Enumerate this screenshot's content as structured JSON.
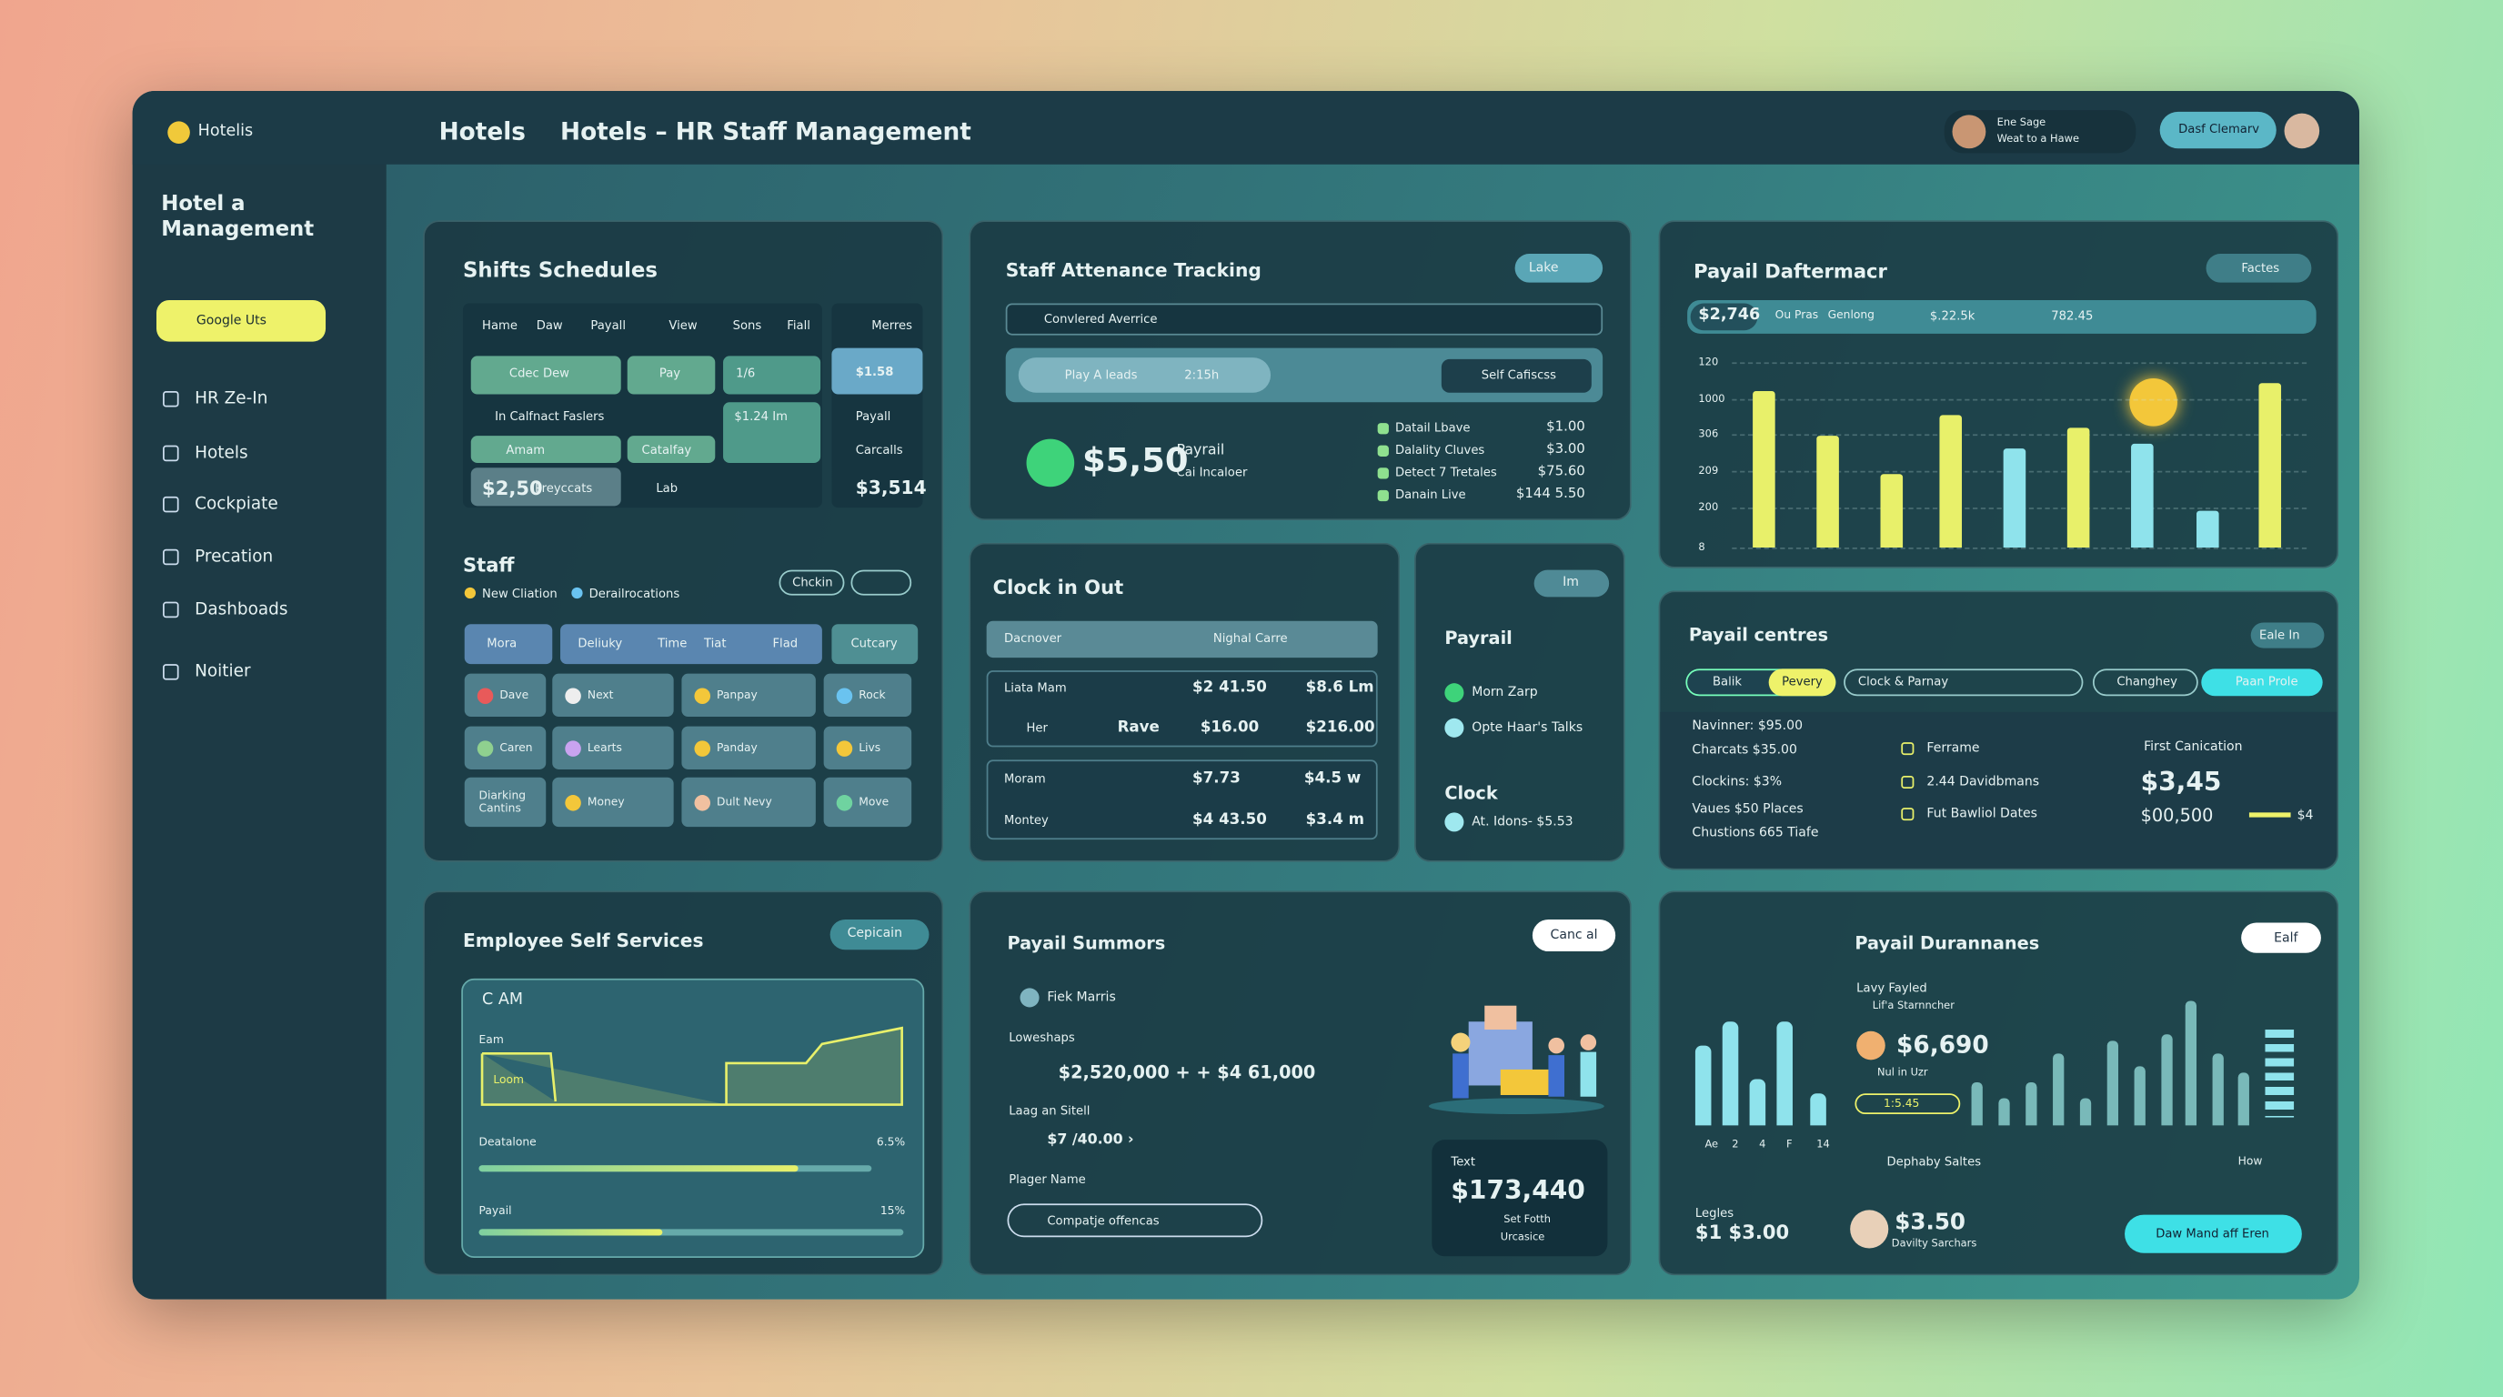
{
  "sidebar": {
    "brand": "Hotelis",
    "title_lines": [
      "Hotel a",
      "Management"
    ],
    "button": "Google Uts",
    "nav": [
      "HR Ze-In",
      "Hotels",
      "Cockpiate",
      "Precation",
      "Dashboads",
      "Noitier"
    ]
  },
  "header": {
    "crumb": "Hotels",
    "title": "Hotels – HR Staff Management",
    "user_name": "Ene Sage",
    "user_role": "Weat to a Hawe",
    "button": "Dasf Clemarv"
  },
  "shifts": {
    "title": "Shifts Schedules",
    "columns": [
      "Hame",
      "Daw",
      "Payall",
      "View",
      "Sons",
      "Fiall"
    ],
    "side_header": "Merres",
    "cells": [
      "Cdec Dew",
      "Pay",
      "1/6",
      "$1.58",
      "In Calfnact Faslers",
      "$1.24 Im",
      "Payall",
      "Amam",
      "Catalfay",
      "Carcalls",
      "$2,50",
      "Preyccats",
      "Lab",
      "$3,514"
    ]
  },
  "staff": {
    "title": "Staff",
    "legend": [
      "New Cliation",
      "Derailrocations"
    ],
    "button": "Chckin",
    "columns": [
      "Mora",
      "Deliuky",
      "Time",
      "Tiat",
      "Flad",
      "Cutcary"
    ],
    "people": [
      "Dave",
      "Next",
      "Panpay",
      "Rock",
      "Caren",
      "Learts",
      "Panday",
      "Livs",
      "Diarking Cantins",
      "Money",
      "Dult Nevy",
      "Move"
    ]
  },
  "attendance": {
    "title": "Staff Attenance Tracking",
    "toggle": "Lake",
    "search": "Convlered Averrice",
    "pill": "Play A leads",
    "pill_value": "2:15h",
    "button": "Self Cafiscss",
    "amount": "$5,50",
    "amount_label": "Payrail",
    "amount_sub": "Cai Incaloer",
    "list": [
      {
        "label": "Datail Lbave",
        "value": "$1.00"
      },
      {
        "label": "Dalality Cluves",
        "value": "$3.00"
      },
      {
        "label": "Detect 7 Tretales",
        "value": "$75.60"
      },
      {
        "label": "Danain Live",
        "value": "$144 5.50"
      }
    ]
  },
  "clock": {
    "title": "Clock in Out",
    "header": [
      "Dacnover",
      "Nighal Carre"
    ],
    "rows": [
      [
        "Liata Mam",
        "$2 41.50",
        "$8.6 Lm"
      ],
      [
        "Her",
        "Rave",
        "$16.00",
        "$216.00"
      ],
      [
        "Moram",
        "$7.73",
        "$4.5 w"
      ],
      [
        "Montey",
        "$4 43.50",
        "$3.4 m"
      ]
    ]
  },
  "payroll_small": {
    "button": "Im",
    "title": "Payrail",
    "items": [
      "Morn Zarp",
      "Opte Haar's Talks"
    ],
    "clock_title": "Clock",
    "clock_item": "At. Idons- $5.53"
  },
  "daftermacr": {
    "title": "Payail Daftermacr",
    "button": "Factes",
    "summary": [
      "$2,746",
      "Ou Pras",
      "Genlong",
      "$.22.5k",
      "782.45"
    ],
    "axis_labels": [
      "120",
      "1000",
      "306",
      "209",
      "200",
      "8"
    ],
    "values": [
      98,
      70,
      46,
      83,
      62,
      75,
      65,
      23,
      103
    ],
    "colors": [
      "#e8f06a",
      "#e8f06a",
      "#e8f06a",
      "#e8f06a",
      "#8fe3ec",
      "#e8f06a",
      "#8fe3ec",
      "#8fe3ec",
      "#e8f06a"
    ]
  },
  "centres": {
    "title": "Payail centres",
    "button": "Eale In",
    "tabs": [
      "Balik",
      "Pevery",
      "Clock & Parnay",
      "Changhey",
      "Paan Prole"
    ],
    "left_rows": [
      "Navinner: $95.00",
      "Charcats $35.00",
      "Clockins: $3%",
      "Vaues $50 Places",
      "Chustions 665 Tiafe"
    ],
    "mid_rows": [
      "Ferrame",
      "2.44 Davidbmans",
      "Fut Bawliol Dates"
    ],
    "right_title": "First Canication",
    "right_value": "$3,45",
    "right_sub": "$00,500",
    "right_tail": "$4"
  },
  "ess": {
    "title": "Employee Self Services",
    "button": "Cepicain",
    "card_title": "C AM",
    "labels": [
      "Eam",
      "Loom"
    ],
    "progress": [
      {
        "label": "Deatalone",
        "value": "6.5%"
      },
      {
        "label": "Payail",
        "value": "15%"
      }
    ]
  },
  "summary": {
    "title": "Payail Summors",
    "button": "Canc al",
    "person": "Fiek Marris",
    "sec1": "Loweshaps",
    "sec1_value": "$2,520,000 + + $4 61,000",
    "sec2": "Laag an Sitell",
    "sec2_value": "$7 /40.00 ›",
    "sec3": "Plager Name",
    "input": "Compatje offencas",
    "card_label": "Text",
    "card_value": "$173,440",
    "card_lines": [
      "Set Fotth",
      "Urcasice"
    ]
  },
  "durannanes": {
    "title": "Payail Durannanes",
    "button": "Ealf",
    "person": "Lavy Fayled",
    "sub": "Lif'a Starnncher",
    "value": "$6,690",
    "sub2": "Nul in Uzr",
    "chip": "1:5.45",
    "link": "Dephaby Saltes",
    "link2": "How",
    "footer_label": "Legles",
    "footer_value": "$1 $3.00",
    "footer2": "$3.50",
    "footer2_sub": "Davilty Sarchars",
    "button2": "Daw Mand aff Eren",
    "xlabels": [
      "Ae",
      "2",
      "4",
      "F",
      "14"
    ],
    "small_values": [
      50,
      65,
      29,
      65,
      20
    ],
    "big_values": [
      27,
      17,
      27,
      45,
      17,
      53,
      37,
      57,
      78,
      45,
      33
    ]
  }
}
